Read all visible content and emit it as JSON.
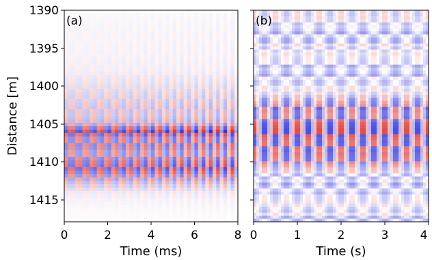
{
  "chart_data": [
    {
      "type": "heatmap",
      "panel_label": "(a)",
      "xlabel": "Time (ms)",
      "ylabel": "Distance [m]",
      "xlim": [
        0,
        8
      ],
      "ylim": [
        1418,
        1390
      ],
      "x_ticks": [
        "0",
        "2",
        "4",
        "6",
        "8"
      ],
      "y_ticks": [
        "1390",
        "1395",
        "1400",
        "1405",
        "1410",
        "1415"
      ],
      "colormap": "seismic",
      "colors": {
        "positive": "#d7191c",
        "negative": "#1a1ad6",
        "zero": "#ffffff"
      },
      "signal_band": [
        1399.5,
        1413
      ],
      "strongest_band": [
        1406,
        1412
      ],
      "oscillation_period_ms": 0.67,
      "amplitude_profile": [
        [
          1390,
          0.04
        ],
        [
          1392,
          0.06
        ],
        [
          1394,
          0.07
        ],
        [
          1396,
          0.08
        ],
        [
          1398,
          0.1
        ],
        [
          1400,
          0.2
        ],
        [
          1401,
          0.25
        ],
        [
          1402,
          0.3
        ],
        [
          1403,
          0.35
        ],
        [
          1404,
          0.35
        ],
        [
          1405,
          0.45
        ],
        [
          1406,
          1.0
        ],
        [
          1407,
          0.65
        ],
        [
          1408,
          0.7
        ],
        [
          1409,
          0.55
        ],
        [
          1410,
          0.75
        ],
        [
          1411,
          0.85
        ],
        [
          1412,
          0.6
        ],
        [
          1413,
          0.35
        ],
        [
          1414,
          0.15
        ],
        [
          1415,
          0.08
        ],
        [
          1416,
          0.05
        ],
        [
          1418,
          0.02
        ]
      ]
    },
    {
      "type": "heatmap",
      "panel_label": "(b)",
      "xlabel": "Time (s)",
      "ylabel": "",
      "xlim": [
        0,
        4
      ],
      "ylim": [
        1418,
        1390
      ],
      "x_ticks": [
        "0",
        "1",
        "2",
        "3",
        "4"
      ],
      "y_ticks": [],
      "colormap": "seismic",
      "colors": {
        "positive": "#d7191c",
        "negative": "#1a1ad6",
        "zero": "#ffffff"
      },
      "signal_band": [
        1401.5,
        1411
      ],
      "oscillation_period_s": 0.5,
      "amplitude_profile": [
        [
          1390,
          0.3
        ],
        [
          1392,
          0.2
        ],
        [
          1394,
          0.25
        ],
        [
          1396,
          0.2
        ],
        [
          1398,
          0.22
        ],
        [
          1400,
          0.18
        ],
        [
          1401,
          0.25
        ],
        [
          1402,
          0.55
        ],
        [
          1403,
          0.75
        ],
        [
          1404,
          0.65
        ],
        [
          1405,
          0.9
        ],
        [
          1406,
          1.0
        ],
        [
          1407,
          0.85
        ],
        [
          1408,
          0.8
        ],
        [
          1409,
          0.8
        ],
        [
          1410,
          0.7
        ],
        [
          1411,
          0.4
        ],
        [
          1412,
          0.2
        ],
        [
          1413,
          0.25
        ],
        [
          1414,
          0.2
        ],
        [
          1415,
          0.22
        ],
        [
          1416,
          0.2
        ],
        [
          1418,
          0.2
        ]
      ]
    }
  ]
}
